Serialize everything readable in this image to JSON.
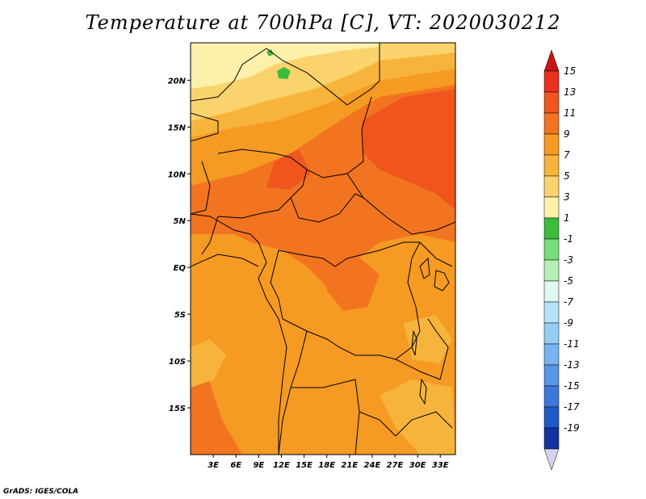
{
  "title": "Temperature at 700hPa [C], VT: 2020030212",
  "credit": "GrADS: IGES/COLA",
  "map": {
    "lon_range": [
      0,
      35
    ],
    "lat_range": [
      -20,
      24
    ],
    "lat_labels": [
      {
        "lat": 20,
        "text": "20N"
      },
      {
        "lat": 15,
        "text": "15N"
      },
      {
        "lat": 10,
        "text": "10N"
      },
      {
        "lat": 5,
        "text": "5N"
      },
      {
        "lat": 0,
        "text": "EQ"
      },
      {
        "lat": -5,
        "text": "5S"
      },
      {
        "lat": -10,
        "text": "10S"
      },
      {
        "lat": -15,
        "text": "15S"
      }
    ],
    "lon_labels": [
      {
        "lon": 3,
        "text": "3E"
      },
      {
        "lon": 6,
        "text": "6E"
      },
      {
        "lon": 9,
        "text": "9E"
      },
      {
        "lon": 12,
        "text": "12E"
      },
      {
        "lon": 15,
        "text": "15E"
      },
      {
        "lon": 18,
        "text": "18E"
      },
      {
        "lon": 21,
        "text": "21E"
      },
      {
        "lon": 24,
        "text": "24E"
      },
      {
        "lon": 27,
        "text": "27E"
      },
      {
        "lon": 30,
        "text": "30E"
      },
      {
        "lon": 33,
        "text": "33E"
      }
    ]
  },
  "colorbar": {
    "levels": [
      {
        "label": "15",
        "color": "#e8321e"
      },
      {
        "label": "13",
        "color": "#f0551e"
      },
      {
        "label": "11",
        "color": "#f27420"
      },
      {
        "label": "9",
        "color": "#f59a22"
      },
      {
        "label": "7",
        "color": "#f7b43c"
      },
      {
        "label": "5",
        "color": "#fbd36c"
      },
      {
        "label": "3",
        "color": "#fdf0aa"
      },
      {
        "label": "1",
        "color": "#3cbc3c"
      },
      {
        "label": "-1",
        "color": "#78dc78"
      },
      {
        "label": "-3",
        "color": "#b4f0b4"
      },
      {
        "label": "-5",
        "color": "#e1f8f0"
      },
      {
        "label": "-7",
        "color": "#b4e4fa"
      },
      {
        "label": "-9",
        "color": "#96cdf5"
      },
      {
        "label": "-11",
        "color": "#78b4f0"
      },
      {
        "label": "-13",
        "color": "#5a96e6"
      },
      {
        "label": "-15",
        "color": "#3c78dc"
      },
      {
        "label": "-17",
        "color": "#1e5ac8"
      },
      {
        "label": "-19",
        "color": "#1432a0"
      }
    ],
    "top_color": "#c81414",
    "bottom_color": "#0a0a5a",
    "low_end_color": "#d2d2f0"
  }
}
